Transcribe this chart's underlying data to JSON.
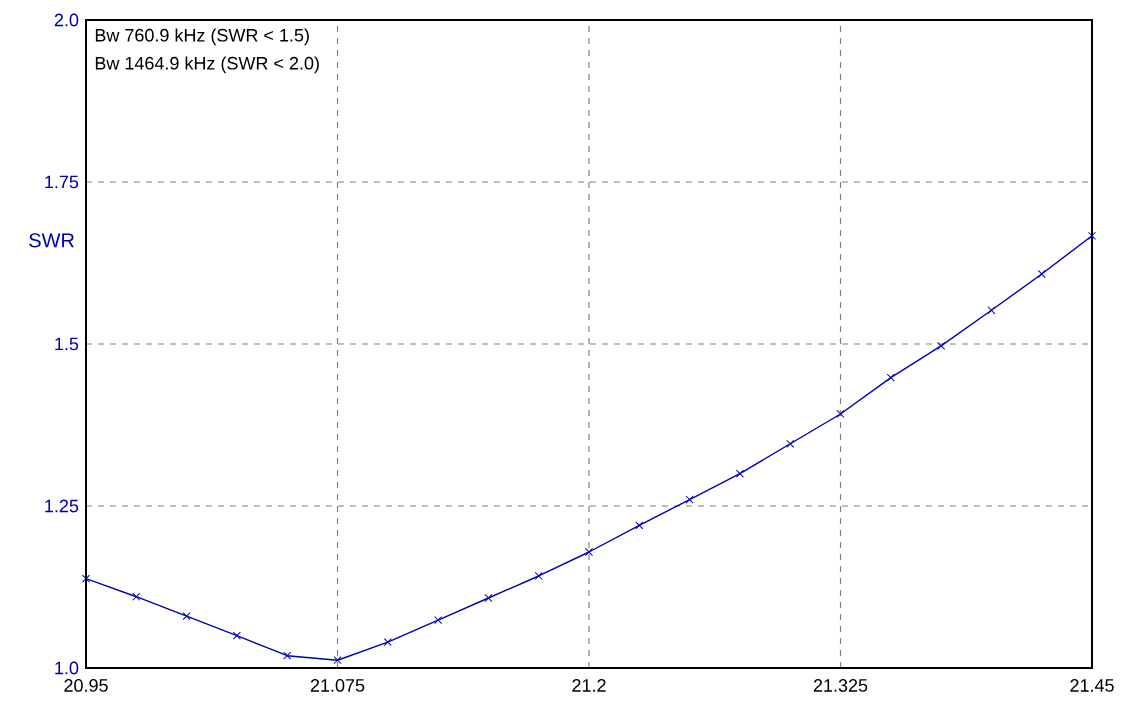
{
  "chart_data": {
    "type": "line",
    "ylabel": "SWR",
    "x": [
      20.95,
      20.975,
      21.0,
      21.025,
      21.05,
      21.075,
      21.1,
      21.125,
      21.15,
      21.175,
      21.2,
      21.225,
      21.25,
      21.275,
      21.3,
      21.325,
      21.35,
      21.375,
      21.4,
      21.425,
      21.45
    ],
    "series": [
      {
        "color": "#0000b4",
        "values": [
          1.138,
          1.11,
          1.08,
          1.05,
          1.019,
          1.012,
          1.04,
          1.074,
          1.108,
          1.142,
          1.179,
          1.22,
          1.26,
          1.3,
          1.346,
          1.392,
          1.448,
          1.497,
          1.552,
          1.608,
          1.667
        ]
      }
    ],
    "xlim": [
      20.95,
      21.45
    ],
    "ylim": [
      1.0,
      2.0
    ],
    "xticks": [
      20.95,
      21.075,
      21.2,
      21.325,
      21.45
    ],
    "yticks": [
      {
        "value": 1.0,
        "label": "1.0"
      },
      1.25,
      1.5,
      1.75,
      {
        "value": 2.0,
        "label": "2.0"
      }
    ],
    "grid": true,
    "marker": "cross",
    "line_style": "solid",
    "annotations": [
      "Bw 760.9 kHz (SWR < 1.5)",
      "Bw 1464.9 kHz (SWR < 2.0)"
    ]
  }
}
